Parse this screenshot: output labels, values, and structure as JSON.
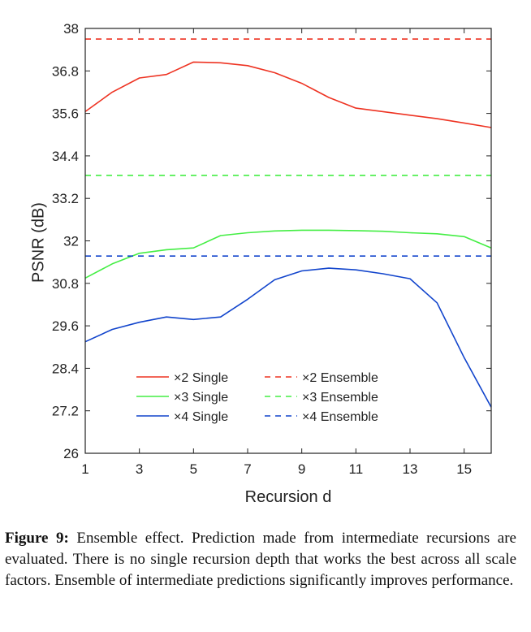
{
  "chart_data": {
    "type": "line",
    "title": "",
    "xlabel": "Recursion d",
    "ylabel": "PSNR (dB)",
    "xlim": [
      1,
      16
    ],
    "ylim": [
      26,
      38
    ],
    "xticks": [
      "1",
      "3",
      "5",
      "7",
      "9",
      "11",
      "13",
      "15"
    ],
    "yticks": [
      "26",
      "27.2",
      "28.4",
      "29.6",
      "30.8",
      "32",
      "33.2",
      "34.4",
      "35.6",
      "36.8",
      "38"
    ],
    "grid": false,
    "legend_position": "bottom",
    "x": [
      1,
      2,
      3,
      4,
      5,
      6,
      7,
      8,
      9,
      10,
      11,
      12,
      13,
      14,
      15,
      16
    ],
    "series": [
      {
        "name": "×2 Single",
        "color": "#ee3322",
        "style": "solid",
        "values": [
          35.65,
          36.2,
          36.6,
          36.7,
          37.05,
          37.03,
          36.95,
          36.75,
          36.45,
          36.05,
          35.75,
          35.65,
          35.55,
          35.45,
          35.33,
          35.2
        ]
      },
      {
        "name": "×3 Single",
        "color": "#44ee44",
        "style": "solid",
        "values": [
          30.95,
          31.35,
          31.65,
          31.75,
          31.8,
          32.15,
          32.23,
          32.28,
          32.3,
          32.3,
          32.29,
          32.27,
          32.23,
          32.2,
          32.12,
          31.8
        ]
      },
      {
        "name": "×4 Single",
        "color": "#1144cc",
        "style": "solid",
        "values": [
          29.15,
          29.5,
          29.7,
          29.85,
          29.78,
          29.85,
          30.35,
          30.9,
          31.15,
          31.23,
          31.18,
          31.07,
          30.93,
          30.25,
          28.7,
          27.3
        ]
      },
      {
        "name": "×2 Ensemble",
        "color": "#ee3322",
        "style": "dashed",
        "values": [
          37.7,
          37.7,
          37.7,
          37.7,
          37.7,
          37.7,
          37.7,
          37.7,
          37.7,
          37.7,
          37.7,
          37.7,
          37.7,
          37.7,
          37.7,
          37.7
        ]
      },
      {
        "name": "×3 Ensemble",
        "color": "#44ee44",
        "style": "dashed",
        "values": [
          33.85,
          33.85,
          33.85,
          33.85,
          33.85,
          33.85,
          33.85,
          33.85,
          33.85,
          33.85,
          33.85,
          33.85,
          33.85,
          33.85,
          33.85,
          33.85
        ]
      },
      {
        "name": "×4 Ensemble",
        "color": "#1144cc",
        "style": "dashed",
        "values": [
          31.57,
          31.57,
          31.57,
          31.57,
          31.57,
          31.57,
          31.57,
          31.57,
          31.57,
          31.57,
          31.57,
          31.57,
          31.57,
          31.57,
          31.57,
          31.57
        ]
      }
    ]
  },
  "caption": {
    "label": "Figure 9:",
    "text": "Ensemble effect. Prediction made from intermediate recursions are evaluated. There is no single recursion depth that works the best across all scale factors. Ensemble of intermediate predictions significantly improves performance."
  }
}
